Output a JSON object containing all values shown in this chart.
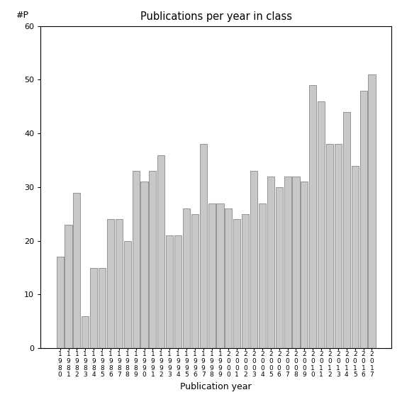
{
  "title": "Publications per year in class",
  "xlabel": "Publication year",
  "ylabel": "#P",
  "ylim": [
    0,
    60
  ],
  "yticks": [
    0,
    10,
    20,
    30,
    40,
    50,
    60
  ],
  "bar_color": "#c8c8c8",
  "bar_edgecolor": "#888888",
  "years": [
    1980,
    1981,
    1982,
    1983,
    1984,
    1985,
    1986,
    1987,
    1988,
    1989,
    1990,
    1991,
    1992,
    1993,
    1994,
    1995,
    1996,
    1997,
    1998,
    1999,
    2000,
    2001,
    2002,
    2003,
    2004,
    2005,
    2006,
    2007,
    2008,
    2009,
    2010,
    2011,
    2012,
    2013,
    2014,
    2015,
    2016,
    2017
  ],
  "values": [
    17,
    23,
    29,
    6,
    15,
    15,
    24,
    24,
    20,
    33,
    31,
    33,
    36,
    21,
    21,
    26,
    25,
    38,
    27,
    27,
    26,
    24,
    25,
    33,
    27,
    32,
    30,
    32,
    32,
    31,
    49,
    46,
    38,
    38,
    44,
    34,
    48,
    51
  ]
}
